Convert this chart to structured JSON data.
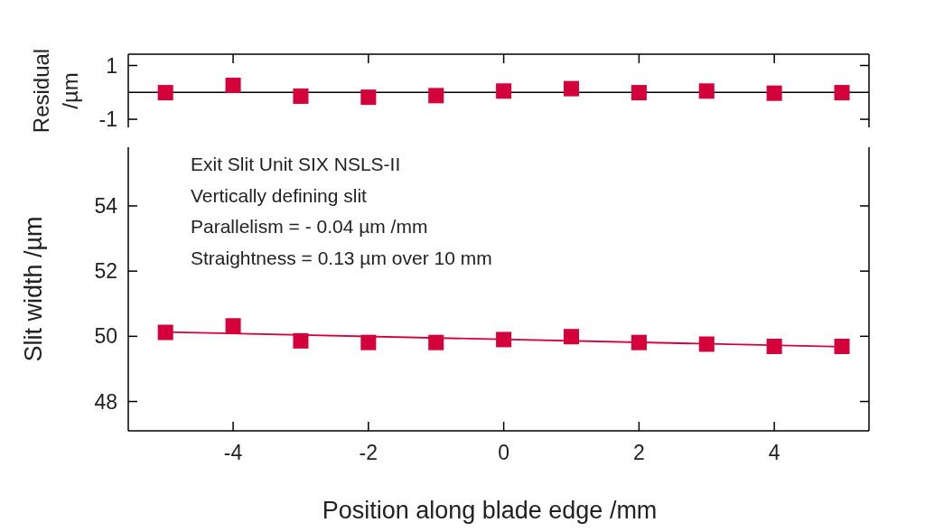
{
  "chart_data": [
    {
      "type": "scatter",
      "ylabel": "Residual /µm",
      "x": [
        -5,
        -4,
        -3,
        -2,
        -1,
        0,
        1,
        2,
        3,
        4,
        5
      ],
      "marker": "square",
      "series": [
        {
          "color": "#d4003c",
          "values": [
            -0.01,
            0.26,
            -0.14,
            -0.18,
            -0.12,
            0.05,
            0.14,
            -0.01,
            0.05,
            -0.03,
            -0.01
          ]
        }
      ],
      "xlim": [
        -5.55,
        5.4
      ],
      "xticks": [
        -4,
        -2,
        0,
        2,
        4
      ],
      "ylim": [
        -1.3,
        1.42
      ],
      "yticks": [
        -1,
        1
      ],
      "tick_labels": "y",
      "ref_lines": [
        {
          "axis": "y",
          "value": 0,
          "color": "#000000"
        }
      ]
    },
    {
      "type": "scatter",
      "xlabel": "Position along blade edge /mm",
      "ylabel": "Slit width /µm",
      "x": [
        -5,
        -4,
        -3,
        -2,
        -1,
        0,
        1,
        2,
        3,
        4,
        5
      ],
      "marker": "square",
      "series": [
        {
          "color": "#d4003c",
          "values": [
            50.12,
            50.32,
            49.86,
            49.81,
            49.81,
            49.9,
            49.99,
            49.81,
            49.76,
            49.69,
            49.69
          ]
        },
        {
          "type": "line",
          "color": "#d4003c",
          "x": [
            -5,
            5
          ],
          "values": [
            50.13,
            49.68
          ],
          "marker": "none"
        }
      ],
      "xlim": [
        -5.55,
        5.4
      ],
      "xticks": [
        -4,
        -2,
        0,
        2,
        4
      ],
      "ylim": [
        47.1,
        55.8
      ],
      "yticks": [
        48,
        50,
        52,
        54
      ],
      "annotations": [
        "Exit Slit Unit SIX NSLS-II",
        "Vertically defining slit",
        "Parallelism = - 0.04 µm /mm",
        "Straightness = 0.13 µm over 10 mm"
      ]
    }
  ]
}
